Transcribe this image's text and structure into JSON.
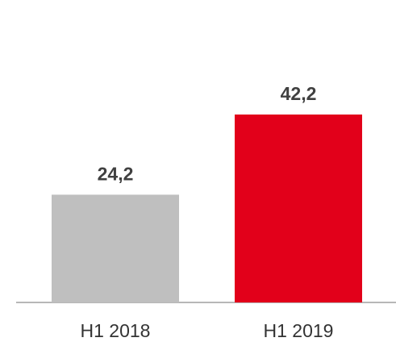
{
  "chart_data": {
    "type": "bar",
    "categories": [
      "H1 2018",
      "H1 2019"
    ],
    "values": [
      24.2,
      42.2
    ],
    "value_labels": [
      "24,2",
      "42,2"
    ],
    "colors": [
      "#bfbfbf",
      "#e2001a"
    ]
  }
}
